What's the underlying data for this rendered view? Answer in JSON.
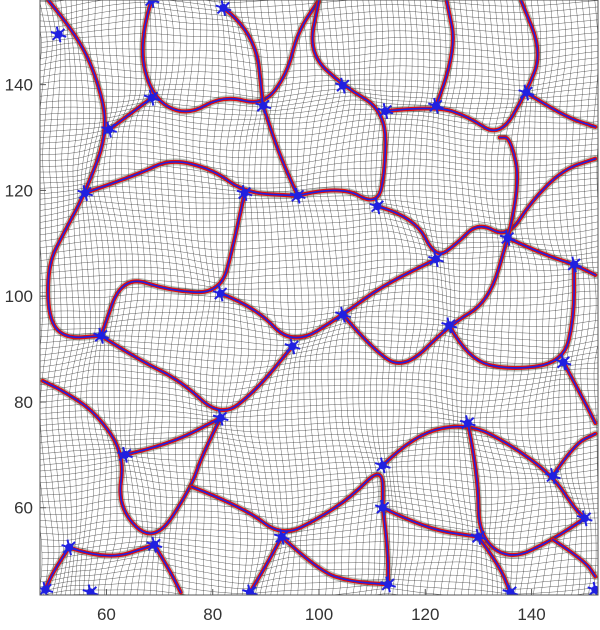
{
  "figure": {
    "xlim": [
      47.5,
      152.5
    ],
    "ylim": [
      43.5,
      156
    ],
    "x_ticks": [
      60,
      80,
      100,
      120,
      140
    ],
    "y_ticks": [
      60,
      80,
      100,
      120,
      140
    ],
    "x_tick_labels": [
      "60",
      "80",
      "100",
      "120",
      "140"
    ],
    "y_tick_labels": [
      "60",
      "80",
      "100",
      "120",
      "140"
    ],
    "mesh_color": "#1a1a1a",
    "boundary_outer_color": "#e01010",
    "boundary_inner_color": "#2020e0",
    "frame_color": "#555555"
  },
  "junction_points": [
    [
      68.5,
      156
    ],
    [
      82,
      154.5
    ],
    [
      51,
      149.5
    ],
    [
      104.5,
      139.8
    ],
    [
      112.5,
      135
    ],
    [
      122,
      136
    ],
    [
      139,
      138.5
    ],
    [
      60.5,
      131.5
    ],
    [
      68.5,
      137.5
    ],
    [
      89.5,
      136
    ],
    [
      56,
      119.5
    ],
    [
      86,
      119.5
    ],
    [
      96,
      119
    ],
    [
      111,
      117
    ],
    [
      135.5,
      111
    ],
    [
      148,
      106
    ],
    [
      122,
      107
    ],
    [
      59,
      92.5
    ],
    [
      81.5,
      100.5
    ],
    [
      95,
      90.5
    ],
    [
      104.5,
      96.5
    ],
    [
      124.5,
      94.5
    ],
    [
      146,
      87.5
    ],
    [
      63.5,
      70
    ],
    [
      81.5,
      77
    ],
    [
      112,
      68
    ],
    [
      128,
      76
    ],
    [
      144,
      66
    ],
    [
      53,
      52.5
    ],
    [
      69,
      53
    ],
    [
      93,
      54.5
    ],
    [
      112,
      60
    ],
    [
      130,
      54.5
    ],
    [
      150,
      58
    ],
    [
      57,
      44
    ],
    [
      87,
      44
    ],
    [
      113,
      45.5
    ],
    [
      136,
      44
    ],
    [
      48.5,
      44.5
    ],
    [
      152,
      44.5
    ]
  ],
  "boundary_paths": [
    [
      [
        49,
        156
      ],
      [
        54,
        150
      ],
      [
        58,
        142
      ],
      [
        60.5,
        131.5
      ],
      [
        56,
        119.5
      ],
      [
        52,
        112
      ],
      [
        49,
        106
      ],
      [
        49,
        96
      ],
      [
        52,
        92
      ],
      [
        59,
        92.5
      ]
    ],
    [
      [
        68.5,
        156
      ],
      [
        66,
        148
      ],
      [
        68.5,
        137.5
      ],
      [
        75,
        134
      ],
      [
        82,
        138
      ],
      [
        89.5,
        136
      ],
      [
        94,
        142
      ],
      [
        96,
        150
      ],
      [
        100,
        156
      ]
    ],
    [
      [
        60.5,
        131.5
      ],
      [
        68.5,
        137.5
      ]
    ],
    [
      [
        82,
        154.5
      ],
      [
        88,
        150
      ],
      [
        89.5,
        136
      ]
    ],
    [
      [
        89.5,
        136
      ],
      [
        92,
        128
      ],
      [
        96,
        119
      ]
    ],
    [
      [
        96,
        119
      ],
      [
        104,
        121
      ],
      [
        111,
        117
      ],
      [
        112.5,
        124
      ],
      [
        112.5,
        135
      ],
      [
        104.5,
        139.8
      ],
      [
        98,
        146
      ],
      [
        100,
        156
      ]
    ],
    [
      [
        112.5,
        135
      ],
      [
        122,
        136
      ],
      [
        128,
        134
      ],
      [
        134,
        130
      ],
      [
        139,
        138.5
      ],
      [
        142,
        146
      ],
      [
        138,
        156
      ]
    ],
    [
      [
        122,
        136
      ],
      [
        126,
        146
      ],
      [
        124,
        156
      ]
    ],
    [
      [
        139,
        138.5
      ],
      [
        146,
        134
      ],
      [
        152,
        132
      ]
    ],
    [
      [
        111,
        117
      ],
      [
        118,
        115
      ],
      [
        122,
        107
      ],
      [
        126,
        110
      ],
      [
        130,
        114
      ],
      [
        135.5,
        111
      ],
      [
        140,
        118
      ],
      [
        146,
        124
      ],
      [
        152,
        126
      ]
    ],
    [
      [
        135.5,
        111
      ],
      [
        142,
        108
      ],
      [
        148,
        106
      ],
      [
        152,
        104
      ]
    ],
    [
      [
        135.5,
        111
      ],
      [
        138,
        121
      ],
      [
        136,
        130
      ],
      [
        134,
        130
      ]
    ],
    [
      [
        56,
        119.5
      ],
      [
        66,
        123
      ],
      [
        72,
        126
      ],
      [
        80,
        124
      ],
      [
        86,
        119.5
      ],
      [
        96,
        119
      ]
    ],
    [
      [
        86,
        119.5
      ],
      [
        84,
        110
      ],
      [
        81.5,
        100.5
      ],
      [
        72,
        101
      ],
      [
        63,
        104
      ],
      [
        59,
        92.5
      ]
    ],
    [
      [
        81.5,
        100.5
      ],
      [
        88,
        98
      ],
      [
        95,
        90.5
      ],
      [
        104.5,
        96.5
      ],
      [
        112,
        102
      ],
      [
        122,
        107
      ]
    ],
    [
      [
        104.5,
        96.5
      ],
      [
        110,
        90
      ],
      [
        116,
        86
      ],
      [
        124.5,
        94.5
      ],
      [
        132,
        99
      ],
      [
        135.5,
        111
      ]
    ],
    [
      [
        124.5,
        94.5
      ],
      [
        128,
        88
      ],
      [
        136,
        86
      ],
      [
        146,
        87.5
      ],
      [
        148,
        96
      ],
      [
        148,
        106
      ]
    ],
    [
      [
        146,
        87.5
      ],
      [
        150,
        80
      ],
      [
        152,
        76
      ]
    ],
    [
      [
        59,
        92.5
      ],
      [
        66,
        88
      ],
      [
        74,
        84
      ],
      [
        81.5,
        77
      ],
      [
        88,
        82
      ],
      [
        95,
        90.5
      ]
    ],
    [
      [
        81.5,
        77
      ],
      [
        78,
        70
      ],
      [
        76,
        64
      ],
      [
        69,
        53
      ],
      [
        62,
        60
      ],
      [
        63.5,
        70
      ],
      [
        58,
        78
      ],
      [
        52,
        82
      ],
      [
        48,
        84
      ]
    ],
    [
      [
        63.5,
        70
      ],
      [
        72,
        72
      ],
      [
        81.5,
        77
      ]
    ],
    [
      [
        76,
        64
      ],
      [
        86,
        60
      ],
      [
        93,
        54.5
      ],
      [
        100,
        58
      ],
      [
        106,
        62
      ],
      [
        112,
        68
      ],
      [
        112,
        60
      ]
    ],
    [
      [
        112,
        68
      ],
      [
        118,
        74
      ],
      [
        128,
        76
      ],
      [
        136,
        72
      ],
      [
        144,
        66
      ],
      [
        148,
        60
      ],
      [
        150,
        58
      ]
    ],
    [
      [
        128,
        76
      ],
      [
        130,
        66
      ],
      [
        130,
        54.5
      ],
      [
        136,
        50
      ],
      [
        144,
        54
      ],
      [
        150,
        58
      ]
    ],
    [
      [
        112,
        60
      ],
      [
        120,
        56
      ],
      [
        130,
        54.5
      ]
    ],
    [
      [
        53,
        52.5
      ],
      [
        60,
        50
      ],
      [
        69,
        53
      ]
    ],
    [
      [
        53,
        52.5
      ],
      [
        50,
        48
      ],
      [
        48.5,
        44.5
      ]
    ],
    [
      [
        69,
        53
      ],
      [
        72,
        48
      ],
      [
        74,
        44
      ]
    ],
    [
      [
        93,
        54.5
      ],
      [
        90,
        49
      ],
      [
        87,
        44
      ]
    ],
    [
      [
        93,
        54.5
      ],
      [
        100,
        48
      ],
      [
        106,
        46
      ],
      [
        113,
        45.5
      ]
    ],
    [
      [
        112,
        60
      ],
      [
        113,
        52
      ],
      [
        113,
        45.5
      ]
    ],
    [
      [
        130,
        54.5
      ],
      [
        134,
        49
      ],
      [
        136,
        44
      ]
    ],
    [
      [
        144,
        66
      ],
      [
        148,
        72
      ],
      [
        152,
        74
      ]
    ],
    [
      [
        144,
        54
      ],
      [
        150,
        50
      ],
      [
        152,
        47
      ]
    ]
  ]
}
